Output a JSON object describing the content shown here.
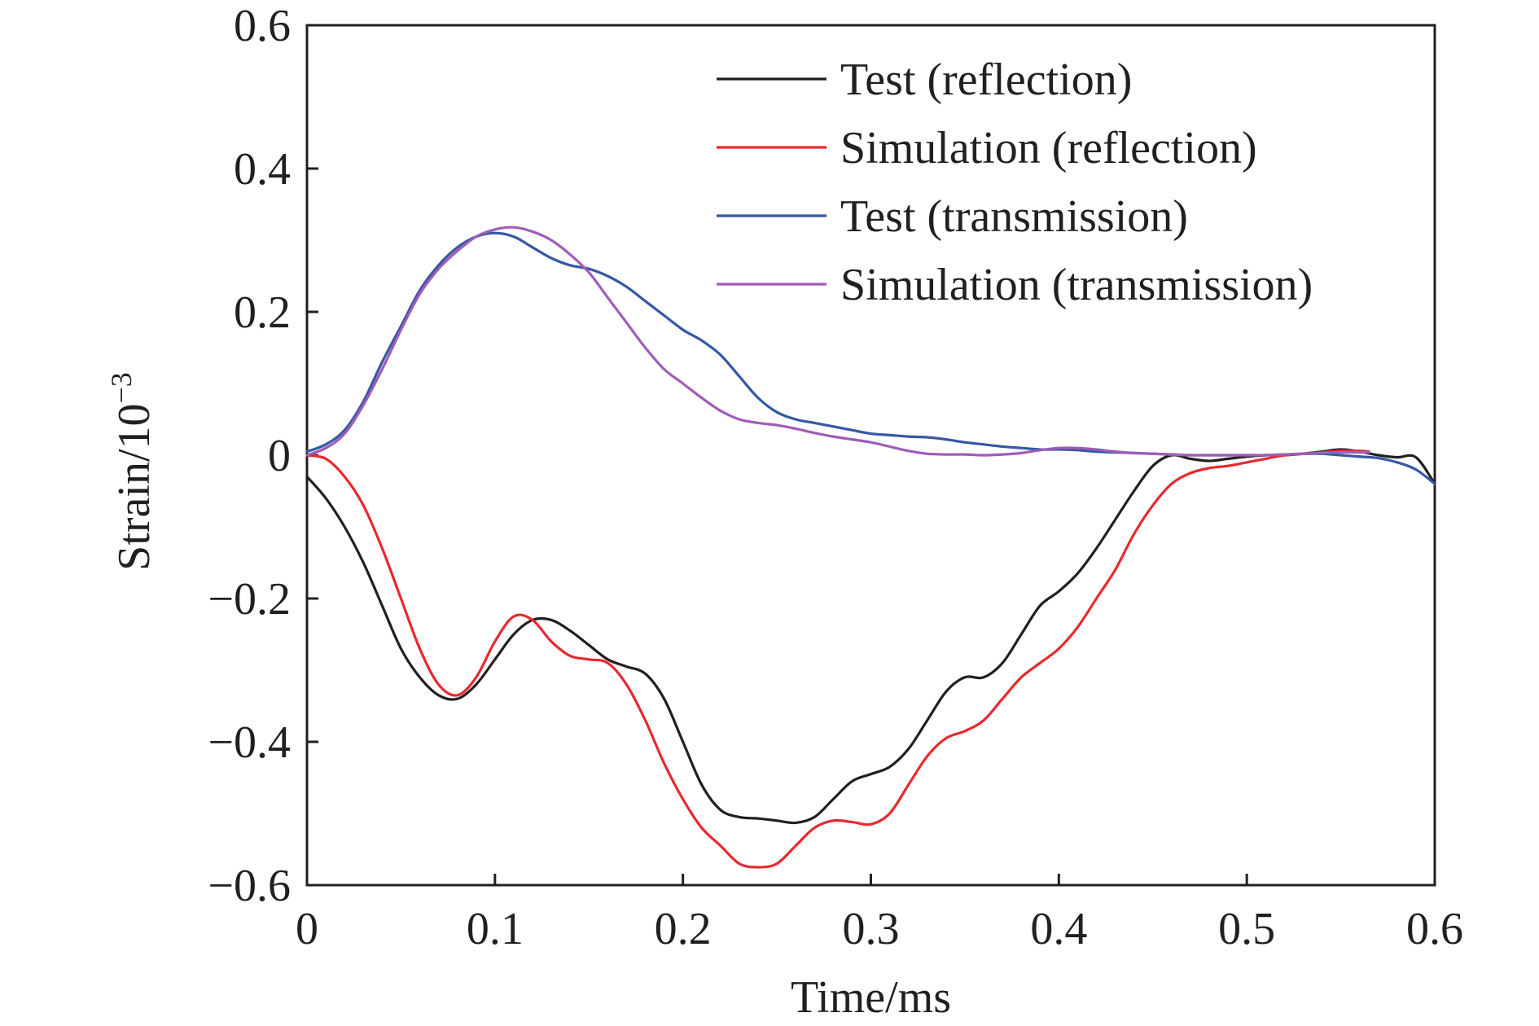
{
  "chart_data": {
    "type": "line",
    "xlabel": "Time/ms",
    "ylabel": "Strain/10",
    "ylabel_exponent": "−3",
    "xlim": [
      0,
      0.6
    ],
    "ylim": [
      -0.6,
      0.6
    ],
    "x_ticks": [
      0,
      0.1,
      0.2,
      0.3,
      0.4,
      0.5,
      0.6
    ],
    "x_tick_labels": [
      "0",
      "0.1",
      "0.2",
      "0.3",
      "0.4",
      "0.5",
      "0.6"
    ],
    "y_ticks": [
      -0.6,
      -0.4,
      -0.2,
      0,
      0.2,
      0.4,
      0.6
    ],
    "y_tick_labels": [
      "−0.6",
      "−0.4",
      "−0.2",
      "0",
      "0.2",
      "0.4",
      "0.6"
    ],
    "grid": false,
    "legend_position": "top-right",
    "series": [
      {
        "name": "Test (reflection)",
        "color": "#231f20",
        "x": [
          0,
          0.01,
          0.02,
          0.03,
          0.04,
          0.05,
          0.06,
          0.07,
          0.08,
          0.09,
          0.1,
          0.11,
          0.12,
          0.13,
          0.14,
          0.15,
          0.16,
          0.17,
          0.18,
          0.19,
          0.2,
          0.21,
          0.22,
          0.23,
          0.24,
          0.25,
          0.26,
          0.27,
          0.28,
          0.29,
          0.3,
          0.31,
          0.32,
          0.33,
          0.34,
          0.35,
          0.36,
          0.37,
          0.38,
          0.39,
          0.4,
          0.41,
          0.42,
          0.43,
          0.44,
          0.45,
          0.46,
          0.47,
          0.48,
          0.49,
          0.5,
          0.51,
          0.52,
          0.53,
          0.54,
          0.55,
          0.56,
          0.57,
          0.58,
          0.59,
          0.6
        ],
        "y": [
          -0.03,
          -0.06,
          -0.1,
          -0.15,
          -0.21,
          -0.27,
          -0.31,
          -0.335,
          -0.34,
          -0.32,
          -0.285,
          -0.25,
          -0.23,
          -0.23,
          -0.245,
          -0.265,
          -0.285,
          -0.295,
          -0.305,
          -0.34,
          -0.4,
          -0.46,
          -0.495,
          -0.505,
          -0.507,
          -0.51,
          -0.513,
          -0.505,
          -0.48,
          -0.455,
          -0.445,
          -0.435,
          -0.41,
          -0.37,
          -0.33,
          -0.31,
          -0.31,
          -0.29,
          -0.25,
          -0.21,
          -0.19,
          -0.165,
          -0.13,
          -0.09,
          -0.05,
          -0.015,
          0,
          -0.005,
          -0.008,
          -0.005,
          -0.002,
          0,
          0,
          0.002,
          0.005,
          0.008,
          0.005,
          0,
          -0.003,
          -0.003,
          -0.04
        ]
      },
      {
        "name": "Simulation (reflection)",
        "color": "#e8292e",
        "x": [
          0,
          0.01,
          0.02,
          0.03,
          0.04,
          0.05,
          0.06,
          0.07,
          0.08,
          0.09,
          0.1,
          0.11,
          0.12,
          0.13,
          0.14,
          0.15,
          0.16,
          0.17,
          0.18,
          0.19,
          0.2,
          0.21,
          0.22,
          0.23,
          0.24,
          0.25,
          0.26,
          0.27,
          0.28,
          0.29,
          0.3,
          0.31,
          0.32,
          0.33,
          0.34,
          0.35,
          0.36,
          0.37,
          0.38,
          0.39,
          0.4,
          0.41,
          0.42,
          0.43,
          0.44,
          0.45,
          0.46,
          0.47,
          0.48,
          0.49,
          0.5,
          0.51,
          0.52,
          0.53,
          0.54,
          0.55,
          0.56,
          0.565
        ],
        "y": [
          0,
          -0.005,
          -0.03,
          -0.07,
          -0.13,
          -0.2,
          -0.27,
          -0.32,
          -0.335,
          -0.31,
          -0.26,
          -0.225,
          -0.23,
          -0.26,
          -0.28,
          -0.285,
          -0.29,
          -0.32,
          -0.37,
          -0.43,
          -0.48,
          -0.52,
          -0.545,
          -0.57,
          -0.575,
          -0.57,
          -0.545,
          -0.52,
          -0.51,
          -0.512,
          -0.515,
          -0.5,
          -0.46,
          -0.42,
          -0.395,
          -0.385,
          -0.37,
          -0.34,
          -0.31,
          -0.29,
          -0.27,
          -0.24,
          -0.2,
          -0.16,
          -0.11,
          -0.07,
          -0.04,
          -0.025,
          -0.018,
          -0.015,
          -0.01,
          -0.005,
          0,
          0.002,
          0.004,
          0.006,
          0.006,
          0.005
        ]
      },
      {
        "name": "Test (transmission)",
        "color": "#3458a4",
        "x": [
          0,
          0.01,
          0.02,
          0.03,
          0.04,
          0.05,
          0.06,
          0.07,
          0.08,
          0.09,
          0.1,
          0.11,
          0.12,
          0.13,
          0.14,
          0.15,
          0.16,
          0.17,
          0.18,
          0.19,
          0.2,
          0.21,
          0.22,
          0.23,
          0.24,
          0.25,
          0.26,
          0.27,
          0.28,
          0.29,
          0.3,
          0.31,
          0.32,
          0.33,
          0.34,
          0.35,
          0.36,
          0.37,
          0.38,
          0.39,
          0.4,
          0.41,
          0.42,
          0.43,
          0.44,
          0.45,
          0.46,
          0.47,
          0.48,
          0.49,
          0.5,
          0.51,
          0.52,
          0.53,
          0.54,
          0.55,
          0.56,
          0.57,
          0.58,
          0.59,
          0.6
        ],
        "y": [
          0.005,
          0.015,
          0.035,
          0.075,
          0.13,
          0.18,
          0.23,
          0.265,
          0.29,
          0.305,
          0.31,
          0.305,
          0.29,
          0.275,
          0.265,
          0.26,
          0.25,
          0.235,
          0.215,
          0.195,
          0.175,
          0.16,
          0.14,
          0.11,
          0.08,
          0.06,
          0.05,
          0.045,
          0.04,
          0.035,
          0.03,
          0.028,
          0.026,
          0.025,
          0.022,
          0.018,
          0.015,
          0.012,
          0.01,
          0.008,
          0.008,
          0.007,
          0.005,
          0.004,
          0.003,
          0.002,
          0.001,
          0,
          0,
          0,
          0,
          0,
          0.001,
          0.002,
          0.002,
          0,
          -0.002,
          -0.004,
          -0.01,
          -0.02,
          -0.04
        ]
      },
      {
        "name": "Simulation (transmission)",
        "color": "#a05cb8",
        "x": [
          0,
          0.01,
          0.02,
          0.03,
          0.04,
          0.05,
          0.06,
          0.07,
          0.08,
          0.09,
          0.1,
          0.11,
          0.12,
          0.13,
          0.14,
          0.15,
          0.16,
          0.17,
          0.18,
          0.19,
          0.2,
          0.21,
          0.22,
          0.23,
          0.24,
          0.25,
          0.26,
          0.27,
          0.28,
          0.29,
          0.3,
          0.31,
          0.32,
          0.33,
          0.34,
          0.35,
          0.36,
          0.37,
          0.38,
          0.39,
          0.4,
          0.41,
          0.42,
          0.43,
          0.44,
          0.45,
          0.46,
          0.47,
          0.48,
          0.49,
          0.5,
          0.51,
          0.52,
          0.53,
          0.54,
          0.55,
          0.56,
          0.565
        ],
        "y": [
          0,
          0.01,
          0.03,
          0.07,
          0.12,
          0.175,
          0.225,
          0.26,
          0.285,
          0.305,
          0.315,
          0.318,
          0.312,
          0.3,
          0.28,
          0.255,
          0.22,
          0.185,
          0.15,
          0.12,
          0.1,
          0.08,
          0.062,
          0.05,
          0.045,
          0.042,
          0.037,
          0.031,
          0.026,
          0.022,
          0.018,
          0.012,
          0.006,
          0.002,
          0.001,
          0.001,
          0,
          0.001,
          0.003,
          0.007,
          0.01,
          0.01,
          0.008,
          0.005,
          0.003,
          0.002,
          0.001,
          0,
          0,
          0,
          0,
          0,
          0.001,
          0.002,
          0.003,
          0.004,
          0.004,
          0.004
        ]
      }
    ]
  }
}
